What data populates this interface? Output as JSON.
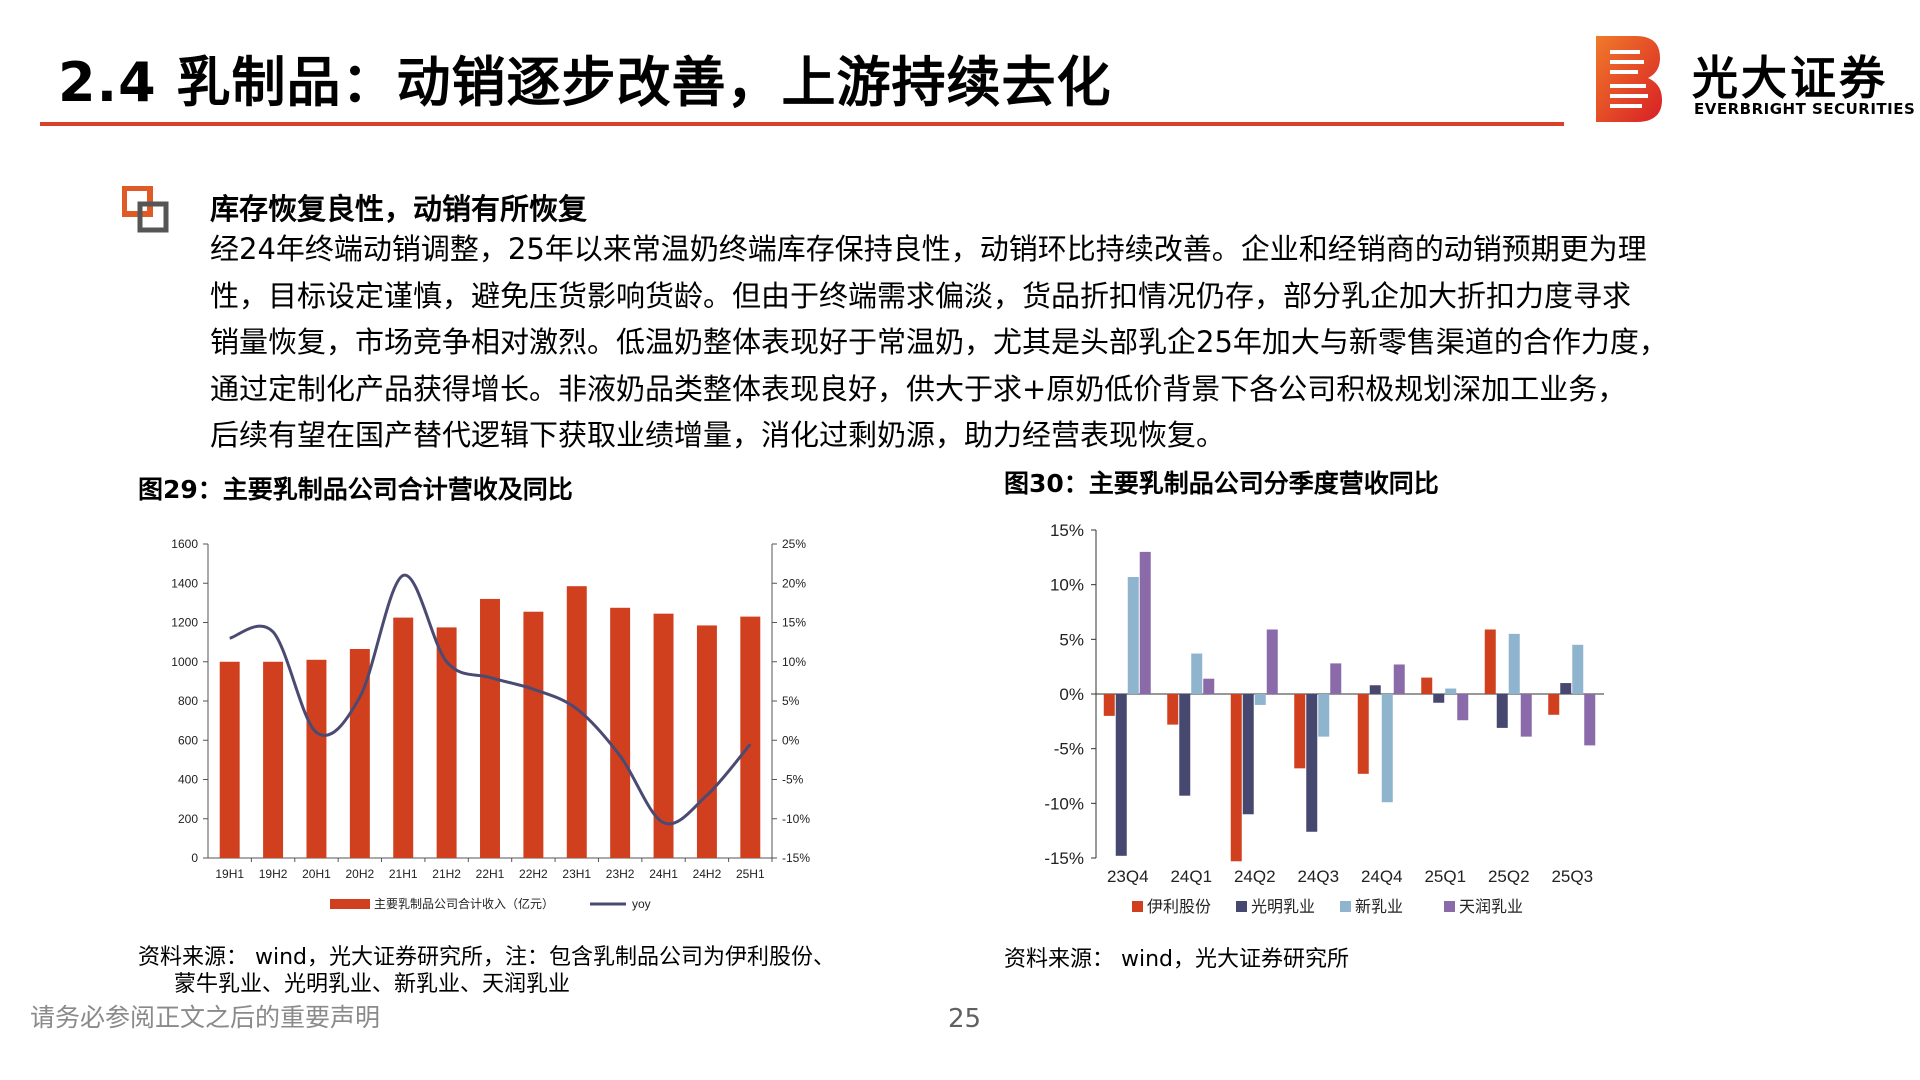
{
  "title": "2.4 乳制品：动销逐步改善，上游持续去化",
  "logo": {
    "cn": "光大证券",
    "en": "EVERBRIGHT SECURITIES",
    "icon": "everbright-b-logo-icon"
  },
  "colors": {
    "accent": "#d9412a",
    "bar": "#d0401f",
    "line": "#4a4a72"
  },
  "section": {
    "icon": "orange-square-bullet-icon",
    "heading": "库存恢复良性，动销有所恢复",
    "lines": [
      "经24年终端动销调整，25年以来常温奶终端库存保持良性，动销环比持续改善。企业和经销商的动销预期更为理",
      "性，目标设定谨慎，避免压货影响货龄。但由于终端需求偏淡，货品折扣情况仍存，部分乳企加大折扣力度寻求",
      "销量恢复，市场竞争相对激烈。低温奶整体表现好于常温奶，尤其是头部乳企25年加大与新零售渠道的合作力度，",
      "通过定制化产品获得增长。非液奶品类整体表现良好，供大于求+原奶低价背景下各公司积极规划深加工业务，",
      "后续有望在国产替代逻辑下获取业绩增量，消化过剩奶源，助力经营表现恢复。"
    ]
  },
  "figures": {
    "fig29": {
      "title": "图29：主要乳制品公司合计营收及同比",
      "source_lines": [
        "资料来源： wind，光大证券研究所，注：包含乳制品公司为伊利股份、",
        "蒙牛乳业、光明乳业、新乳业、天润乳业"
      ]
    },
    "fig30": {
      "title": "图30：主要乳制品公司分季度营收同比",
      "source_lines": [
        "资料来源： wind，光大证券研究所"
      ]
    }
  },
  "chart_data": [
    {
      "type": "bar",
      "categories": [
        "19H1",
        "19H2",
        "20H1",
        "20H2",
        "21H1",
        "21H2",
        "22H1",
        "22H2",
        "23H1",
        "23H2",
        "24H1",
        "24H2",
        "25H1"
      ],
      "series": [
        {
          "name": "主要乳制品公司合计收入（亿元）",
          "type": "bar",
          "axis": "left",
          "values": [
            1000,
            1000,
            1010,
            1065,
            1225,
            1175,
            1320,
            1255,
            1385,
            1275,
            1245,
            1185,
            1230
          ]
        },
        {
          "name": "yoy",
          "type": "line",
          "axis": "right",
          "values": [
            13.0,
            13.8,
            1.0,
            5.5,
            21.0,
            10.0,
            8.0,
            6.5,
            4.0,
            -2.0,
            -10.5,
            -7.0,
            -0.5
          ]
        }
      ],
      "y_left": {
        "min": 0,
        "max": 1600,
        "ticks": [
          "0",
          "200",
          "400",
          "600",
          "800",
          "1000",
          "1200",
          "1400",
          "1600"
        ]
      },
      "y_right": {
        "min": -15,
        "max": 25,
        "ticks": [
          "-15%",
          "-10%",
          "-5%",
          "0%",
          "5%",
          "10%",
          "15%",
          "20%",
          "25%"
        ]
      },
      "legend": "bottom"
    },
    {
      "type": "bar",
      "categories": [
        "23Q4",
        "24Q1",
        "24Q2",
        "24Q3",
        "24Q4",
        "25Q1",
        "25Q2",
        "25Q3"
      ],
      "series": [
        {
          "name": "伊利股份",
          "color": "#d0401f",
          "values": [
            -2.0,
            -2.8,
            -15.3,
            -6.8,
            -7.3,
            1.5,
            5.9,
            -1.9
          ]
        },
        {
          "name": "光明乳业",
          "color": "#474870",
          "values": [
            -14.8,
            -9.3,
            -11.0,
            -12.6,
            0.8,
            -0.8,
            -3.1,
            1.0
          ]
        },
        {
          "name": "新乳业",
          "color": "#8fb4cd",
          "values": [
            10.7,
            3.7,
            -1.0,
            -3.9,
            -9.9,
            0.5,
            5.5,
            4.5
          ]
        },
        {
          "name": "天润乳业",
          "color": "#8a6aa8",
          "values": [
            13.0,
            1.4,
            5.9,
            2.8,
            2.7,
            -2.4,
            -3.9,
            -4.7
          ]
        }
      ],
      "y": {
        "min": -15,
        "max": 15,
        "ticks": [
          "-15%",
          "-10%",
          "-5%",
          "0%",
          "5%",
          "10%",
          "15%"
        ]
      },
      "legend": "bottom"
    }
  ],
  "footer": {
    "note": "请务必参阅正文之后的重要声明",
    "page": "25"
  }
}
